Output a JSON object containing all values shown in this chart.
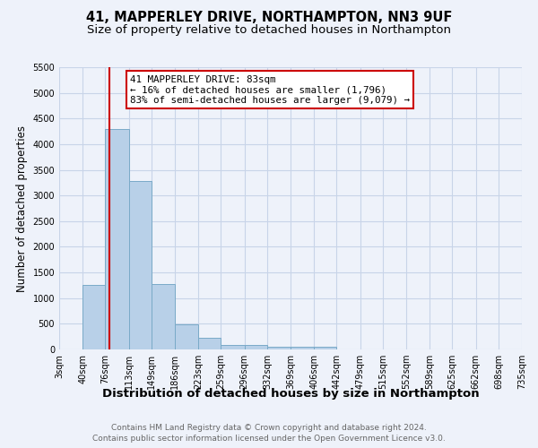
{
  "title": "41, MAPPERLEY DRIVE, NORTHAMPTON, NN3 9UF",
  "subtitle": "Size of property relative to detached houses in Northampton",
  "xlabel": "Distribution of detached houses by size in Northampton",
  "ylabel": "Number of detached properties",
  "footnote1": "Contains HM Land Registry data © Crown copyright and database right 2024.",
  "footnote2": "Contains public sector information licensed under the Open Government Licence v3.0.",
  "bar_edges": [
    3,
    40,
    76,
    113,
    149,
    186,
    223,
    259,
    296,
    332,
    369,
    406,
    442,
    479,
    515,
    552,
    589,
    625,
    662,
    698,
    735
  ],
  "bar_heights": [
    0,
    1250,
    4300,
    3280,
    1280,
    490,
    220,
    90,
    90,
    55,
    50,
    55,
    0,
    0,
    0,
    0,
    0,
    0,
    0,
    0
  ],
  "bar_color": "#b8d0e8",
  "bar_edge_color": "#7aaac8",
  "property_line_x": 83,
  "property_line_color": "#cc0000",
  "annotation_text": "41 MAPPERLEY DRIVE: 83sqm\n← 16% of detached houses are smaller (1,796)\n83% of semi-detached houses are larger (9,079) →",
  "annotation_box_color": "#ffffff",
  "annotation_box_edge_color": "#cc0000",
  "ylim": [
    0,
    5500
  ],
  "yticks": [
    0,
    500,
    1000,
    1500,
    2000,
    2500,
    3000,
    3500,
    4000,
    4500,
    5000,
    5500
  ],
  "grid_color": "#c8d4e8",
  "background_color": "#eef2fa",
  "title_fontsize": 10.5,
  "subtitle_fontsize": 9.5,
  "tick_label_fontsize": 7,
  "ylabel_fontsize": 8.5,
  "xlabel_fontsize": 9.5,
  "footnote_fontsize": 6.5,
  "footnote_color": "#666666"
}
